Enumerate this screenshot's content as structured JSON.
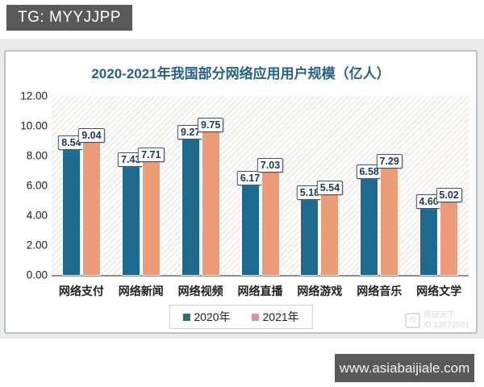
{
  "page": {
    "badge": "TG: MYYJJPP",
    "banner": "www.asiabaijiale.com"
  },
  "chart": {
    "title": "2020-2021年我国部分网络应用用户规模（亿人）",
    "watermark": {
      "line1": "观研天下",
      "line2": "ID:13672501"
    },
    "legend": [
      {
        "label": "2020年",
        "color": "#2e6f68"
      },
      {
        "label": "2021年",
        "color": "#cf9a9a"
      }
    ]
  },
  "chart_data": {
    "type": "bar",
    "title": "2020-2021年我国部分网络应用用户规模（亿人）",
    "categories": [
      "网络支付",
      "网络新闻",
      "网络视频",
      "网络直播",
      "网络游戏",
      "网络音乐",
      "网络文学"
    ],
    "series": [
      {
        "name": "2020年",
        "color": "#1d6a8e",
        "values": [
          8.54,
          7.43,
          9.27,
          6.17,
          5.18,
          6.58,
          4.6
        ]
      },
      {
        "name": "2021年",
        "color": "#ec9c79",
        "values": [
          9.04,
          7.71,
          9.75,
          7.03,
          5.54,
          7.29,
          5.02
        ]
      }
    ],
    "ylim": [
      0,
      12
    ],
    "y_ticks": [
      "12.00",
      "10.00",
      "8.00",
      "6.00",
      "4.00",
      "2.00",
      "0.00"
    ],
    "ylabel": "",
    "xlabel": "",
    "grid": false,
    "plot_background": "diagonal-hatch",
    "legend_position": "bottom",
    "value_labels": true
  }
}
